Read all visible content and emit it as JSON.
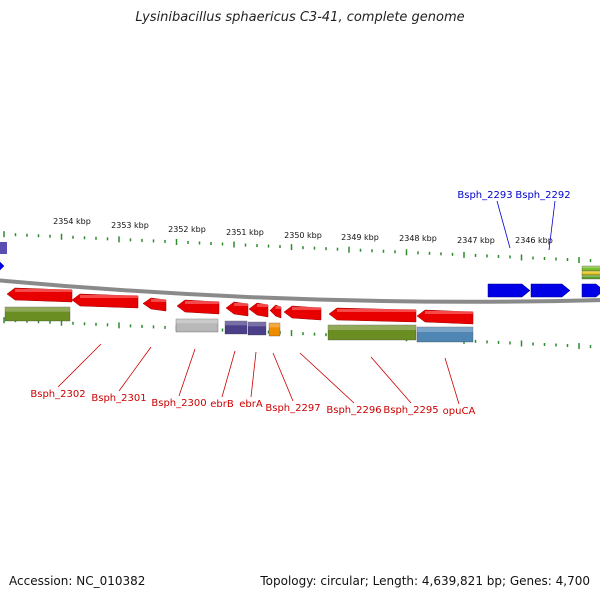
{
  "title": "Lysinibacillus sphaericus C3-41, complete genome",
  "footer": {
    "accession": "Accession: NC_010382",
    "summary": "Topology: circular; Length: 4,639,821 bp; Genes: 4,700"
  },
  "colors": {
    "forward_gene": "#0000e6",
    "reverse_gene": "#e80000",
    "tick": "#2e8b2e",
    "backbone": "#8a8a8a",
    "forward_label": "#0000cc",
    "reverse_label": "#cc0000"
  },
  "ruler_labels": [
    "2354 kbp",
    "2353 kbp",
    "2352 kbp",
    "2351 kbp",
    "2350 kbp",
    "2349 kbp",
    "2348 kbp",
    "2347 kbp",
    "2346 kbp"
  ],
  "forward_labels": [
    "Bsph_2293",
    "Bsph_2292"
  ],
  "reverse_labels": [
    "Bsph_2302",
    "Bsph_2301",
    "Bsph_2300",
    "ebrB",
    "ebrA",
    "Bsph_2297",
    "Bsph_2296",
    "Bsph_2295",
    "opuCA"
  ]
}
